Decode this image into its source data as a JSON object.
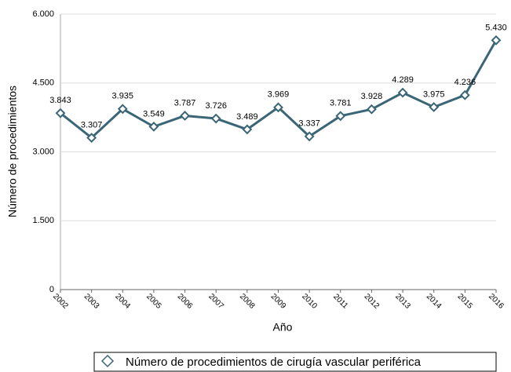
{
  "chart_data": {
    "type": "line",
    "x_label": "Año",
    "y_label": "Número de procedimientos",
    "x": [
      2002,
      2003,
      2004,
      2005,
      2006,
      2007,
      2008,
      2009,
      2010,
      2011,
      2012,
      2013,
      2014,
      2015,
      2016
    ],
    "xlim": [
      2002,
      2016
    ],
    "xticks": [
      2002,
      2003,
      2004,
      2005,
      2006,
      2007,
      2008,
      2009,
      2010,
      2011,
      2012,
      2013,
      2014,
      2015,
      2016
    ],
    "series": [
      {
        "name": "Número de procedimientos de cirugía vascular periférica",
        "color": "#3a6676",
        "values": [
          3843,
          3307,
          3935,
          3549,
          3787,
          3726,
          3489,
          3969,
          3337,
          3781,
          3928,
          4289,
          3975,
          4236,
          5430
        ],
        "value_labels": [
          "3.843",
          "3.307",
          "3.935",
          "3.549",
          "3.787",
          "3.726",
          "3.489",
          "3.969",
          "3.337",
          "3.781",
          "3.928",
          "4.289",
          "3.975",
          "4.236",
          "5.430"
        ]
      }
    ],
    "ylim": [
      0,
      6000
    ],
    "yticks": [
      0,
      {
        "value": 1500,
        "label": "1.500"
      },
      {
        "value": 3000,
        "label": "3.000"
      },
      {
        "value": 4500,
        "label": "4.500"
      },
      {
        "value": 6000,
        "label": "6.000"
      }
    ],
    "grid": true,
    "legend": "bottom"
  }
}
